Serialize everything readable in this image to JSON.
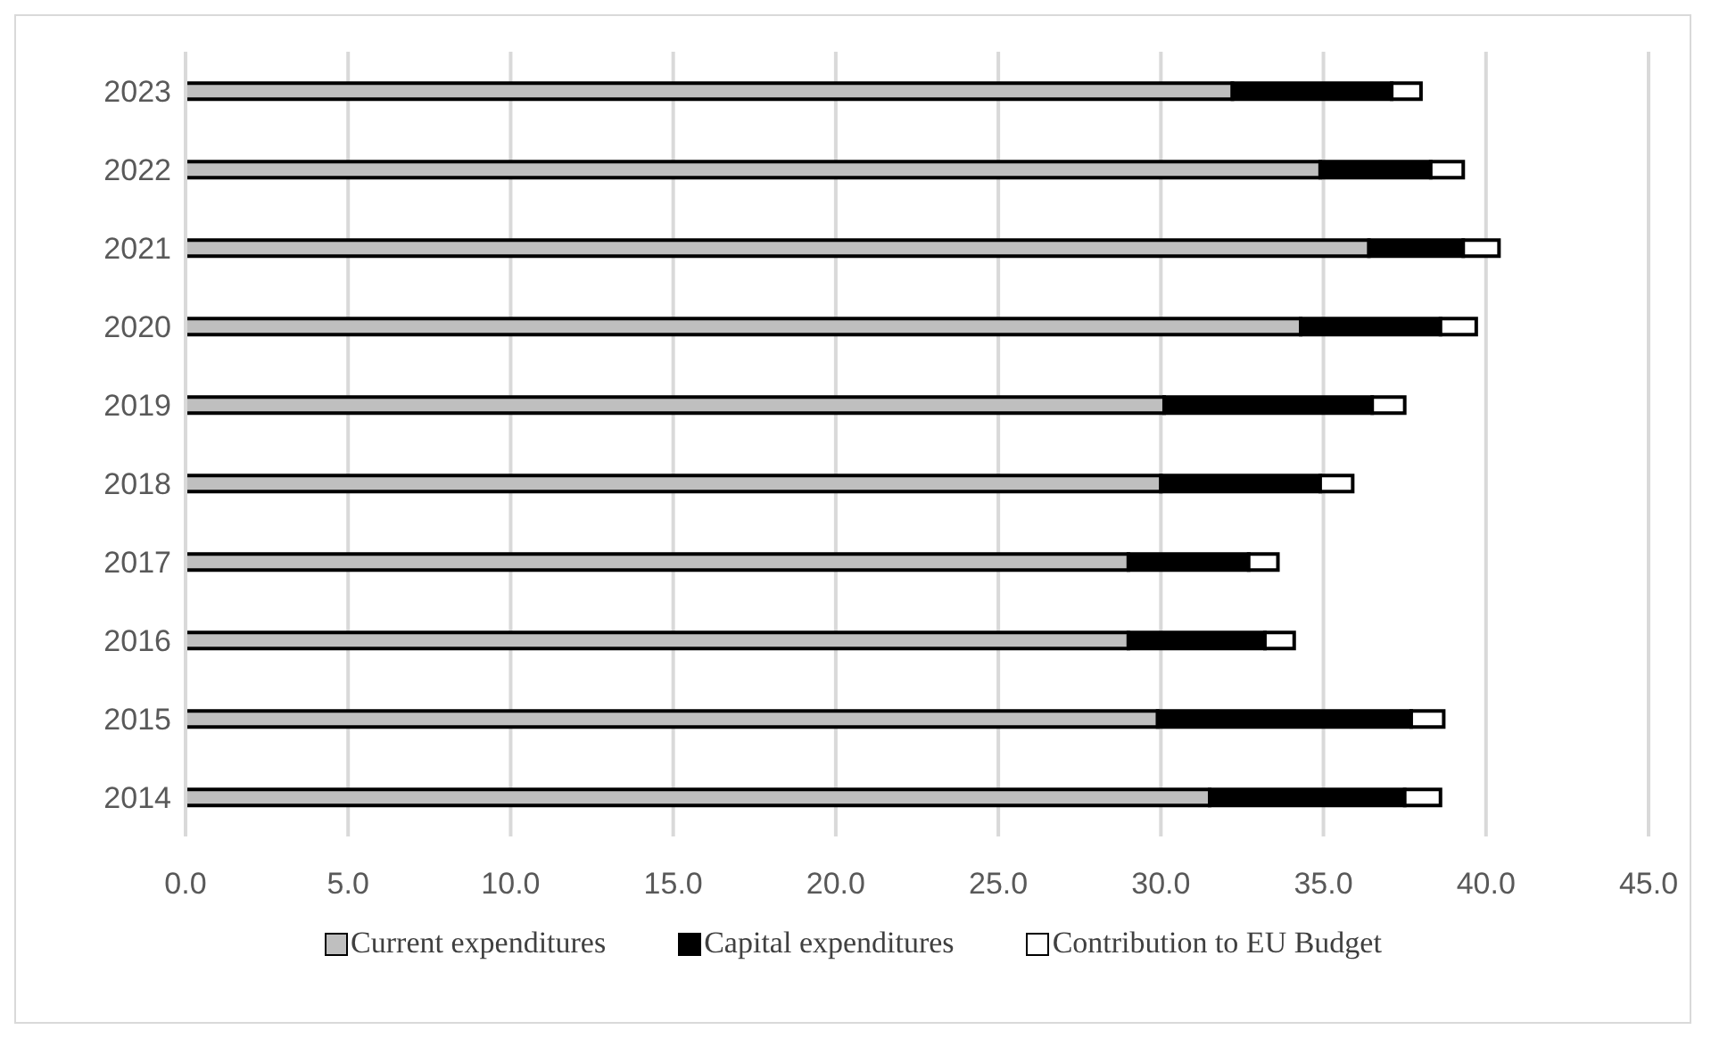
{
  "chart_data": {
    "type": "bar",
    "orientation": "horizontal",
    "stacked": true,
    "categories": [
      "2023",
      "2022",
      "2021",
      "2020",
      "2019",
      "2018",
      "2017",
      "2016",
      "2015",
      "2014"
    ],
    "series": [
      {
        "name": "Current expenditures",
        "color": "#bfbfbf",
        "values": [
          32.2,
          34.9,
          36.4,
          34.3,
          30.1,
          30.0,
          29.0,
          29.0,
          29.9,
          31.5
        ]
      },
      {
        "name": "Capital expenditures",
        "color": "#000000",
        "values": [
          4.9,
          3.4,
          2.9,
          4.3,
          6.4,
          4.9,
          3.7,
          4.2,
          7.8,
          6.0
        ]
      },
      {
        "name": "Contribution to EU Budget",
        "color": "#ffffff",
        "values": [
          0.9,
          1.0,
          1.1,
          1.1,
          1.0,
          1.0,
          0.9,
          0.9,
          1.0,
          1.1
        ]
      }
    ],
    "xlim": [
      0,
      45
    ],
    "xticks": [
      {
        "value": 0,
        "label": "0.0"
      },
      {
        "value": 5,
        "label": "5.0"
      },
      {
        "value": 10,
        "label": "10.0"
      },
      {
        "value": 15,
        "label": "15.0"
      },
      {
        "value": 20,
        "label": "20.0"
      },
      {
        "value": 25,
        "label": "25.0"
      },
      {
        "value": 30,
        "label": "30.0"
      },
      {
        "value": 35,
        "label": "35.0"
      },
      {
        "value": 40,
        "label": "40.0"
      },
      {
        "value": 45,
        "label": "45.0"
      }
    ],
    "grid": "x",
    "legend": "bottom"
  }
}
